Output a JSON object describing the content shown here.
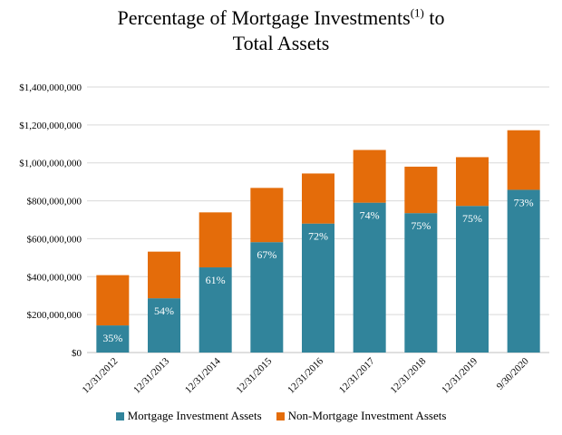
{
  "chart_data": {
    "type": "bar",
    "stacked": true,
    "title_main": "Percentage of Mortgage Investments",
    "title_sup": "(1)",
    "title_end": " to",
    "title_line2": "Total Assets",
    "categories": [
      "12/31/2012",
      "12/31/2013",
      "12/31/2014",
      "12/31/2015",
      "12/31/2016",
      "12/31/2017",
      "12/31/2018",
      "12/31/2019",
      "9/30/2020"
    ],
    "series": [
      {
        "name": "Mortgage Investment Assets",
        "color": "#31849b",
        "values": [
          143000000,
          286000000,
          449000000,
          582000000,
          680000000,
          790000000,
          735000000,
          773000000,
          858000000
        ]
      },
      {
        "name": "Non-Mortgage Investment Assets",
        "color": "#e46c0a",
        "values": [
          265000000,
          246000000,
          290000000,
          286000000,
          264000000,
          278000000,
          245000000,
          257000000,
          314000000
        ]
      }
    ],
    "data_labels": [
      "35%",
      "54%",
      "61%",
      "67%",
      "72%",
      "74%",
      "75%",
      "75%",
      "73%"
    ],
    "yticks": [
      {
        "value": 0,
        "label": "$0"
      },
      {
        "value": 200000000,
        "label": "$200,000,000"
      },
      {
        "value": 400000000,
        "label": "$400,000,000"
      },
      {
        "value": 600000000,
        "label": "$600,000,000"
      },
      {
        "value": 800000000,
        "label": "$800,000,000"
      },
      {
        "value": 1000000000,
        "label": "$1,000,000,000"
      },
      {
        "value": 1200000000,
        "label": "$1,200,000,000"
      },
      {
        "value": 1400000000,
        "label": "$1,400,000,000"
      }
    ],
    "ylim": [
      0,
      1400000000
    ],
    "grid": true,
    "legend_position": "bottom",
    "gridline_color": "#d9d9d9"
  }
}
